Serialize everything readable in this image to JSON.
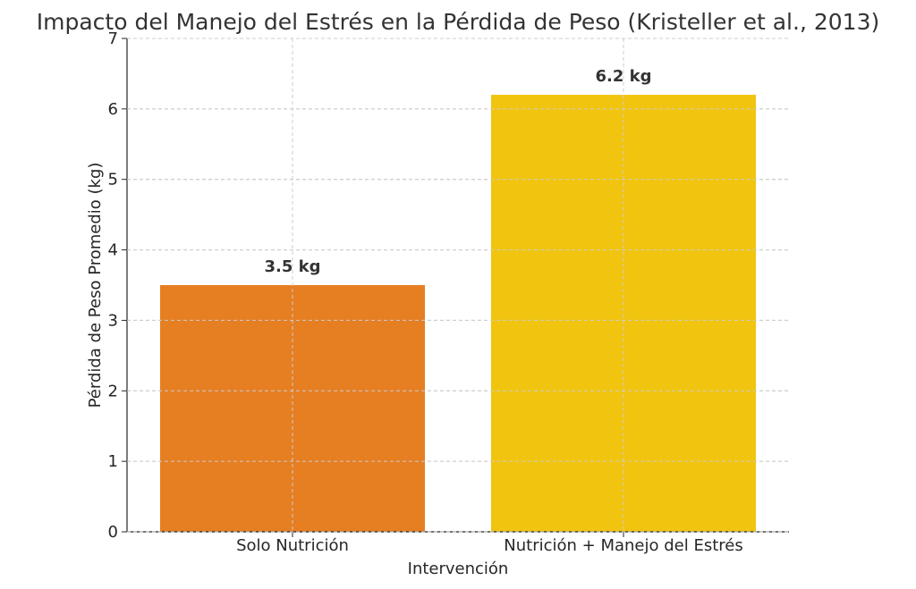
{
  "chart_data": {
    "type": "bar",
    "title": "Impacto del Manejo del Estrés en la Pérdida de Peso (Kristeller et al., 2013)",
    "xlabel": "Intervención",
    "ylabel": "Pérdida de Peso Promedio (kg)",
    "categories": [
      "Solo Nutrición",
      "Nutrición + Manejo del Estrés"
    ],
    "values": [
      3.5,
      6.2
    ],
    "data_labels": [
      "3.5 kg",
      "6.2 kg"
    ],
    "colors": [
      "#e67e22",
      "#f1c40f"
    ],
    "ylim": [
      0,
      7
    ],
    "yticks": [
      0,
      1,
      2,
      3,
      4,
      5,
      6,
      7
    ],
    "grid": true
  }
}
